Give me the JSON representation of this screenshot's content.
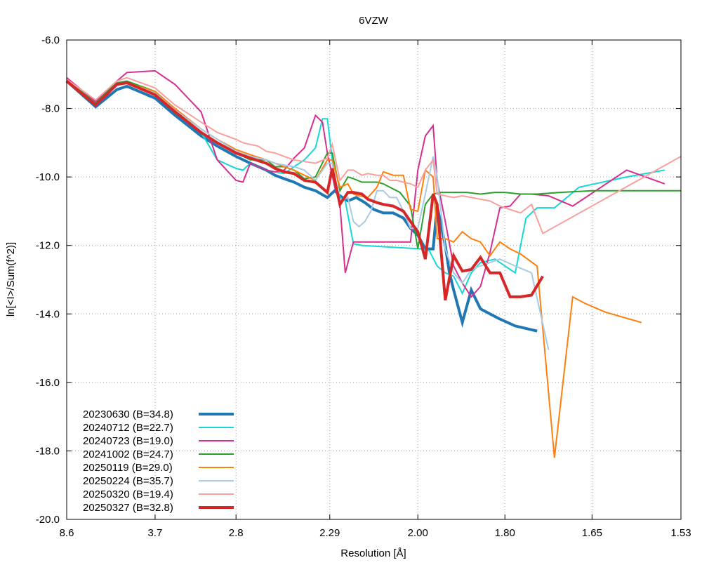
{
  "chart_data": {
    "type": "line",
    "title": "6VZW",
    "xlabel": "Resolution [Å]",
    "ylabel": "ln[<I>/Sum(f^2)]",
    "x_scale": "inverse-square resolution (1/d^2)",
    "xlim_resolution": [
      8.6,
      1.53
    ],
    "ylim": [
      -20,
      -6
    ],
    "x_ticks": [
      "8.6",
      "3.7",
      "2.8",
      "2.29",
      "2.00",
      "1.80",
      "1.65",
      "1.53"
    ],
    "y_ticks": [
      "-6.0",
      "-8.0",
      "-10.0",
      "-12.0",
      "-14.0",
      "-16.0",
      "-18.0",
      "-20.0"
    ],
    "grid": true,
    "legend_position": "bottom-left",
    "series": [
      {
        "name": "20230630 (B=34.8)",
        "color": "#1f77b4",
        "width": 4,
        "x": [
          8.6,
          5.5,
          4.6,
          4.3,
          3.7,
          3.4,
          3.1,
          2.95,
          2.8,
          2.7,
          2.6,
          2.55,
          2.5,
          2.45,
          2.4,
          2.35,
          2.3,
          2.27,
          2.25,
          2.22,
          2.19,
          2.16,
          2.13,
          2.1,
          2.07,
          2.04,
          2.02,
          2.0,
          1.98,
          1.96,
          1.95,
          1.93,
          1.92,
          1.91,
          1.89,
          1.87,
          1.85,
          1.83,
          1.81,
          1.78,
          1.74
        ],
        "y": [
          -7.2,
          -7.95,
          -7.45,
          -7.35,
          -7.7,
          -8.2,
          -8.8,
          -9.1,
          -9.4,
          -9.6,
          -9.8,
          -9.95,
          -10.05,
          -10.15,
          -10.3,
          -10.4,
          -10.6,
          -10.4,
          -10.55,
          -10.7,
          -10.6,
          -10.75,
          -10.95,
          -11.05,
          -11.05,
          -11.2,
          -11.5,
          -11.7,
          -12.1,
          -12.1,
          -10.85,
          -12.0,
          -12.8,
          -13.3,
          -14.25,
          -13.3,
          -13.85,
          -14.0,
          -14.15,
          -14.35,
          -14.5
        ]
      },
      {
        "name": "20240712 (B=22.7)",
        "color": "#17d8d8",
        "width": 2,
        "x": [
          8.6,
          5.5,
          4.6,
          4.3,
          3.7,
          3.4,
          3.1,
          2.95,
          2.8,
          2.75,
          2.7,
          2.65,
          2.6,
          2.55,
          2.5,
          2.45,
          2.4,
          2.35,
          2.32,
          2.3,
          2.27,
          2.25,
          2.23,
          2.2,
          2.17,
          1.99,
          1.97,
          1.95,
          1.93,
          1.91,
          1.89,
          1.87,
          1.85,
          1.82,
          1.8,
          1.78,
          1.76,
          1.74,
          1.71,
          1.67,
          1.6,
          1.55
        ],
        "y": [
          -7.15,
          -7.85,
          -7.25,
          -7.2,
          -7.55,
          -8.1,
          -8.7,
          -9.5,
          -9.75,
          -9.8,
          -9.6,
          -9.7,
          -9.8,
          -9.85,
          -9.9,
          -9.7,
          -9.5,
          -9.15,
          -8.3,
          -8.3,
          -10.1,
          -10.6,
          -10.7,
          -11.95,
          -12.0,
          -12.1,
          -12.15,
          -12.6,
          -12.8,
          -12.9,
          -13.4,
          -12.8,
          -12.5,
          -12.4,
          -12.6,
          -12.8,
          -11.2,
          -10.9,
          -10.9,
          -10.3,
          -10.0,
          -9.8
        ]
      },
      {
        "name": "20240723 (B=19.0)",
        "color": "#d62f8f",
        "width": 2,
        "x": [
          8.6,
          5.5,
          4.6,
          4.3,
          3.7,
          3.4,
          3.1,
          2.95,
          2.8,
          2.75,
          2.7,
          2.65,
          2.6,
          2.55,
          2.5,
          2.45,
          2.4,
          2.35,
          2.32,
          2.3,
          2.27,
          2.25,
          2.23,
          2.2,
          2.02,
          2.0,
          1.98,
          1.96,
          1.95,
          1.93,
          1.91,
          1.89,
          1.87,
          1.85,
          1.83,
          1.81,
          1.79,
          1.77,
          1.75,
          1.72,
          1.68,
          1.6,
          1.55
        ],
        "y": [
          -7.1,
          -7.8,
          -7.2,
          -6.95,
          -6.9,
          -7.3,
          -8.1,
          -9.5,
          -10.1,
          -10.15,
          -9.6,
          -9.7,
          -9.8,
          -9.85,
          -9.8,
          -9.45,
          -9.15,
          -8.2,
          -8.4,
          -9.3,
          -10.3,
          -10.8,
          -12.8,
          -11.9,
          -11.9,
          -9.8,
          -8.8,
          -8.5,
          -10.1,
          -11.3,
          -12.6,
          -13.1,
          -13.5,
          -13.2,
          -12.2,
          -10.9,
          -10.85,
          -10.5,
          -10.5,
          -10.55,
          -10.85,
          -9.8,
          -10.2
        ]
      },
      {
        "name": "20241002 (B=24.7)",
        "color": "#2ca02c",
        "width": 2,
        "x": [
          8.6,
          5.5,
          4.6,
          4.3,
          3.7,
          3.4,
          3.1,
          2.95,
          2.8,
          2.7,
          2.6,
          2.55,
          2.5,
          2.45,
          2.4,
          2.35,
          2.3,
          2.28,
          2.25,
          2.22,
          2.2,
          2.17,
          2.15,
          2.12,
          2.1,
          2.08,
          2.05,
          2.02,
          2.0,
          1.98,
          1.96,
          1.94,
          1.92,
          1.9,
          1.88,
          1.85,
          1.82,
          1.8,
          1.77,
          1.74,
          1.7,
          1.65,
          1.6,
          1.55,
          1.53
        ],
        "y": [
          -7.15,
          -7.85,
          -7.25,
          -7.2,
          -7.5,
          -8.1,
          -8.7,
          -9.0,
          -9.3,
          -9.5,
          -9.5,
          -9.7,
          -9.7,
          -9.8,
          -10.05,
          -10.0,
          -9.3,
          -9.3,
          -10.4,
          -10.0,
          -10.05,
          -10.15,
          -10.15,
          -10.15,
          -10.2,
          -10.3,
          -10.45,
          -10.85,
          -12.1,
          -10.8,
          -10.5,
          -10.45,
          -10.45,
          -10.45,
          -10.45,
          -10.5,
          -10.45,
          -10.45,
          -10.5,
          -10.5,
          -10.45,
          -10.4,
          -10.4,
          -10.4,
          -10.4
        ]
      },
      {
        "name": "20250119 (B=29.0)",
        "color": "#ff7f0e",
        "width": 2,
        "x": [
          8.6,
          5.5,
          4.6,
          4.3,
          3.7,
          3.4,
          3.1,
          2.95,
          2.8,
          2.7,
          2.6,
          2.55,
          2.5,
          2.45,
          2.4,
          2.35,
          2.3,
          2.28,
          2.25,
          2.22,
          2.2,
          2.18,
          2.15,
          2.12,
          2.1,
          2.07,
          2.04,
          2.02,
          2.0,
          1.98,
          1.96,
          1.95,
          1.93,
          1.91,
          1.89,
          1.87,
          1.85,
          1.83,
          1.81,
          1.79,
          1.77,
          1.74,
          1.71,
          1.68,
          1.66,
          1.63,
          1.58
        ],
        "y": [
          -7.2,
          -7.9,
          -7.3,
          -7.25,
          -7.5,
          -8.0,
          -8.6,
          -8.9,
          -9.2,
          -9.35,
          -9.5,
          -9.6,
          -9.7,
          -9.8,
          -9.95,
          -10.1,
          -9.5,
          -9.5,
          -10.3,
          -10.2,
          -10.5,
          -10.55,
          -10.6,
          -10.3,
          -9.85,
          -9.95,
          -9.95,
          -10.95,
          -11.0,
          -9.8,
          -10.0,
          -11.8,
          -11.8,
          -11.9,
          -11.6,
          -11.8,
          -11.9,
          -12.3,
          -11.9,
          -12.1,
          -12.25,
          -12.6,
          -18.2,
          -13.5,
          -13.7,
          -13.95,
          -14.25
        ]
      },
      {
        "name": "20250224 (B=35.7)",
        "color": "#a6cbe3",
        "width": 2,
        "x": [
          8.6,
          5.5,
          4.6,
          4.3,
          3.7,
          3.4,
          3.1,
          2.95,
          2.8,
          2.7,
          2.6,
          2.55,
          2.5,
          2.45,
          2.4,
          2.35,
          2.3,
          2.28,
          2.25,
          2.22,
          2.2,
          2.18,
          2.16,
          2.14,
          2.12,
          2.1,
          2.08,
          2.06,
          2.04,
          2.02,
          2.0,
          1.98,
          1.96,
          1.95,
          1.93,
          1.91,
          1.89,
          1.87,
          1.85,
          1.83,
          1.81,
          1.78,
          1.75,
          1.72
        ],
        "y": [
          -7.2,
          -7.9,
          -7.3,
          -7.25,
          -7.55,
          -8.05,
          -8.6,
          -8.9,
          -9.25,
          -9.4,
          -9.5,
          -9.6,
          -9.65,
          -9.7,
          -9.8,
          -10.1,
          -9.6,
          -9.6,
          -10.7,
          -10.6,
          -11.3,
          -11.45,
          -11.3,
          -11.0,
          -10.4,
          -10.4,
          -10.6,
          -10.6,
          -11.0,
          -11.5,
          -11.5,
          -10.5,
          -9.4,
          -10.0,
          -12.1,
          -12.8,
          -13.1,
          -12.7,
          -12.6,
          -12.5,
          -12.4,
          -12.6,
          -12.8,
          -15.05
        ]
      },
      {
        "name": "20250320 (B=19.4)",
        "color": "#f7a09e",
        "width": 2,
        "x": [
          8.6,
          5.5,
          4.6,
          4.3,
          3.7,
          3.4,
          3.1,
          2.95,
          2.8,
          2.75,
          2.7,
          2.65,
          2.6,
          2.55,
          2.5,
          2.45,
          2.4,
          2.35,
          2.3,
          2.28,
          2.25,
          2.22,
          2.2,
          2.17,
          2.15,
          2.12,
          2.1,
          2.08,
          2.06,
          2.04,
          2.02,
          2.0,
          1.98,
          1.96,
          1.95,
          1.93,
          1.91,
          1.89,
          1.87,
          1.85,
          1.83,
          1.81,
          1.79,
          1.77,
          1.75,
          1.73,
          1.53
        ],
        "y": [
          -7.15,
          -7.75,
          -7.2,
          -7.1,
          -7.4,
          -7.9,
          -8.4,
          -8.7,
          -8.9,
          -9.0,
          -9.05,
          -9.1,
          -9.25,
          -9.3,
          -9.4,
          -9.5,
          -9.55,
          -9.6,
          -9.45,
          -9.05,
          -10.1,
          -9.8,
          -9.8,
          -9.95,
          -9.9,
          -9.95,
          -9.95,
          -10.1,
          -10.1,
          -10.15,
          -10.2,
          -10.3,
          -9.8,
          -9.5,
          -10.5,
          -10.55,
          -10.6,
          -10.55,
          -10.6,
          -10.65,
          -10.7,
          -10.85,
          -10.95,
          -11.05,
          -10.8,
          -11.65,
          -9.4
        ]
      },
      {
        "name": "20250327 (B=32.8)",
        "color": "#d62728",
        "width": 4,
        "x": [
          8.6,
          5.5,
          4.6,
          4.3,
          3.7,
          3.4,
          3.1,
          2.95,
          2.8,
          2.7,
          2.6,
          2.55,
          2.5,
          2.45,
          2.4,
          2.35,
          2.3,
          2.28,
          2.25,
          2.22,
          2.2,
          2.17,
          2.15,
          2.12,
          2.1,
          2.07,
          2.04,
          2.02,
          2.0,
          1.98,
          1.96,
          1.95,
          1.93,
          1.91,
          1.89,
          1.87,
          1.85,
          1.83,
          1.81,
          1.79,
          1.77,
          1.75,
          1.73
        ],
        "y": [
          -7.2,
          -7.9,
          -7.3,
          -7.25,
          -7.6,
          -8.1,
          -8.7,
          -9.0,
          -9.3,
          -9.45,
          -9.6,
          -9.75,
          -9.85,
          -9.9,
          -10.1,
          -10.15,
          -10.45,
          -9.75,
          -10.8,
          -10.45,
          -10.45,
          -10.5,
          -10.65,
          -10.75,
          -10.8,
          -10.85,
          -11.0,
          -11.3,
          -11.6,
          -12.4,
          -10.5,
          -10.8,
          -13.6,
          -12.3,
          -12.75,
          -12.7,
          -12.35,
          -12.8,
          -12.8,
          -13.5,
          -13.5,
          -13.45,
          -12.9
        ]
      }
    ]
  }
}
